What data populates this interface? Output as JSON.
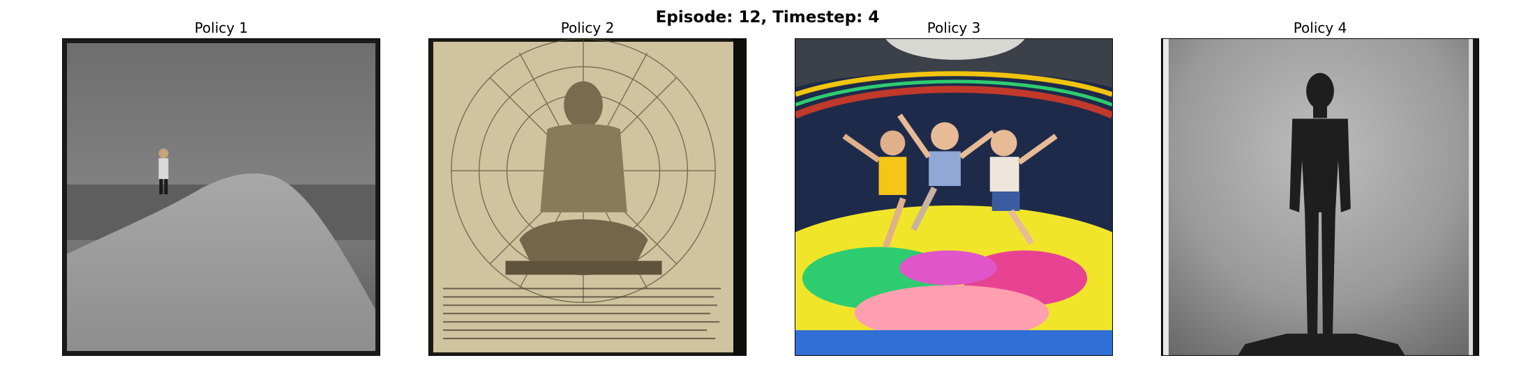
{
  "figure": {
    "suptitle": "Episode: 12, Timestep: 4",
    "panels": [
      {
        "title": "Policy 1",
        "depiction": "lone-figure-on-gray-hill"
      },
      {
        "title": "Policy 2",
        "depiction": "sepia-seated-sage-manuscript"
      },
      {
        "title": "Policy 3",
        "depiction": "children-jumping-trampoline"
      },
      {
        "title": "Policy 4",
        "depiction": "dark-silhouette-standing"
      }
    ]
  }
}
